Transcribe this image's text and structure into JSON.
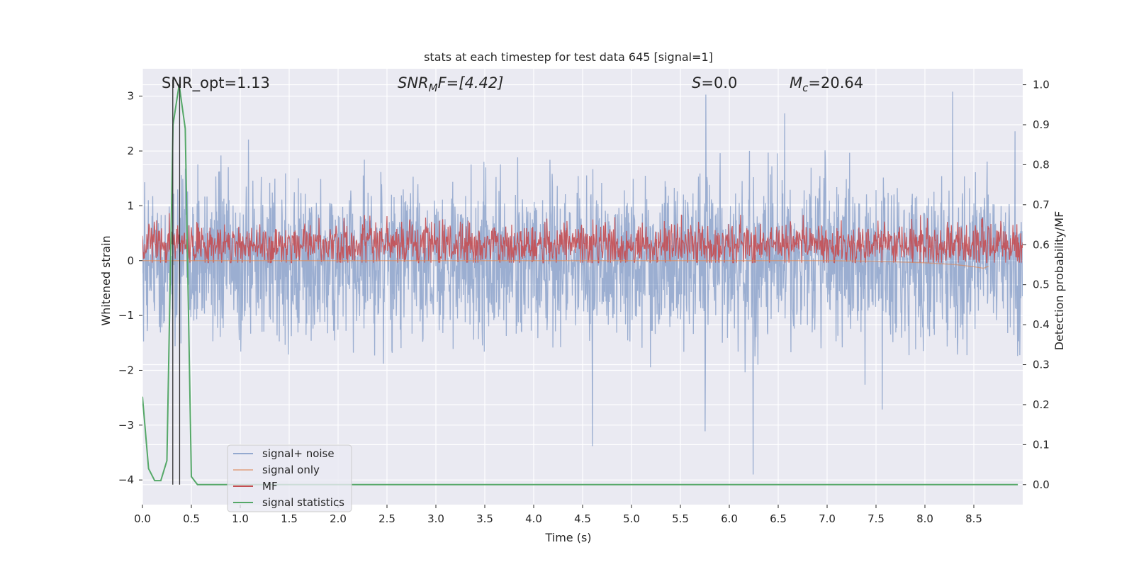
{
  "chart_data": {
    "type": "line",
    "title": "stats at each timestep for test data 645 [signal=1]",
    "xlabel": "Time (s)",
    "ylabel": "Whitened strain",
    "ylabel_right": "Detection probability/MF",
    "xlim": [
      0,
      9.0
    ],
    "ylim": [
      -4.45,
      3.5
    ],
    "ylim_right": [
      -0.05,
      1.04
    ],
    "xticks": [
      0.0,
      0.5,
      1.0,
      1.5,
      2.0,
      2.5,
      3.0,
      3.5,
      4.0,
      4.5,
      5.0,
      5.5,
      6.0,
      6.5,
      7.0,
      7.5,
      8.0,
      8.5
    ],
    "xtick_labels": [
      "0.0",
      "0.5",
      "1.0",
      "1.5",
      "2.0",
      "2.5",
      "3.0",
      "3.5",
      "4.0",
      "4.5",
      "5.0",
      "5.5",
      "6.0",
      "6.5",
      "7.0",
      "7.5",
      "8.0",
      "8.5"
    ],
    "yticks": [
      3,
      2,
      1,
      0,
      -1,
      -2,
      -3,
      -4
    ],
    "ytick_labels": [
      "3",
      "2",
      "1",
      "0",
      "−1",
      "−2",
      "−3",
      "−4"
    ],
    "yticks_right": [
      1.0,
      0.9,
      0.8,
      0.7,
      0.6,
      0.5,
      0.4,
      0.3,
      0.2,
      0.1,
      0.0
    ],
    "ytick_labels_right": [
      "1.0",
      "0.9",
      "0.8",
      "0.7",
      "0.6",
      "0.5",
      "0.4",
      "0.3",
      "0.2",
      "0.1",
      "0.0"
    ],
    "grid": true,
    "legend_position": "lower-left",
    "annotations": {
      "snr_opt": "SNR_opt=1.13",
      "snr_mf_main": "SNR",
      "snr_mf_sub": "M",
      "snr_mf_rest": "F=[4.42]",
      "s_main": "S",
      "s_rest": "=0.0",
      "mc_main": "M",
      "mc_sub": "c",
      "mc_rest": "=20.64"
    },
    "vlines_x": [
      0.31,
      0.38
    ],
    "series": [
      {
        "name": "signal+ noise",
        "color": "#4c72b0",
        "envelope_amplitude": 1.3,
        "axis": "left"
      },
      {
        "name": "signal only",
        "color": "#dd8452",
        "axis": "left",
        "x": [
          7.0,
          7.5,
          8.0,
          8.3,
          8.5,
          8.6,
          8.65
        ],
        "y": [
          0.0,
          -0.01,
          -0.04,
          -0.07,
          -0.11,
          -0.14,
          -0.1
        ]
      },
      {
        "name": "MF",
        "color": "#c44e52",
        "axis": "right",
        "base": 0.6,
        "envelope_amplitude": 0.08
      },
      {
        "name": "signal statistics",
        "color": "#55a868",
        "axis": "right",
        "x": [
          0.0,
          0.0625,
          0.125,
          0.1875,
          0.25,
          0.3125,
          0.375,
          0.4375,
          0.5,
          0.5625,
          0.625,
          0.75,
          1.0,
          2.0,
          3.0,
          4.0,
          5.0,
          6.0,
          7.0,
          8.0,
          8.95
        ],
        "y": [
          0.22,
          0.04,
          0.01,
          0.01,
          0.06,
          0.9,
          1.0,
          0.89,
          0.02,
          0.0,
          0.0,
          0.0,
          0.0,
          0.0,
          0.0,
          0.0,
          0.0,
          0.0,
          0.0,
          0.0,
          0.0
        ]
      }
    ],
    "colors": {
      "background": "#eaeaf2",
      "grid": "#ffffff",
      "vline": "#333333"
    }
  }
}
